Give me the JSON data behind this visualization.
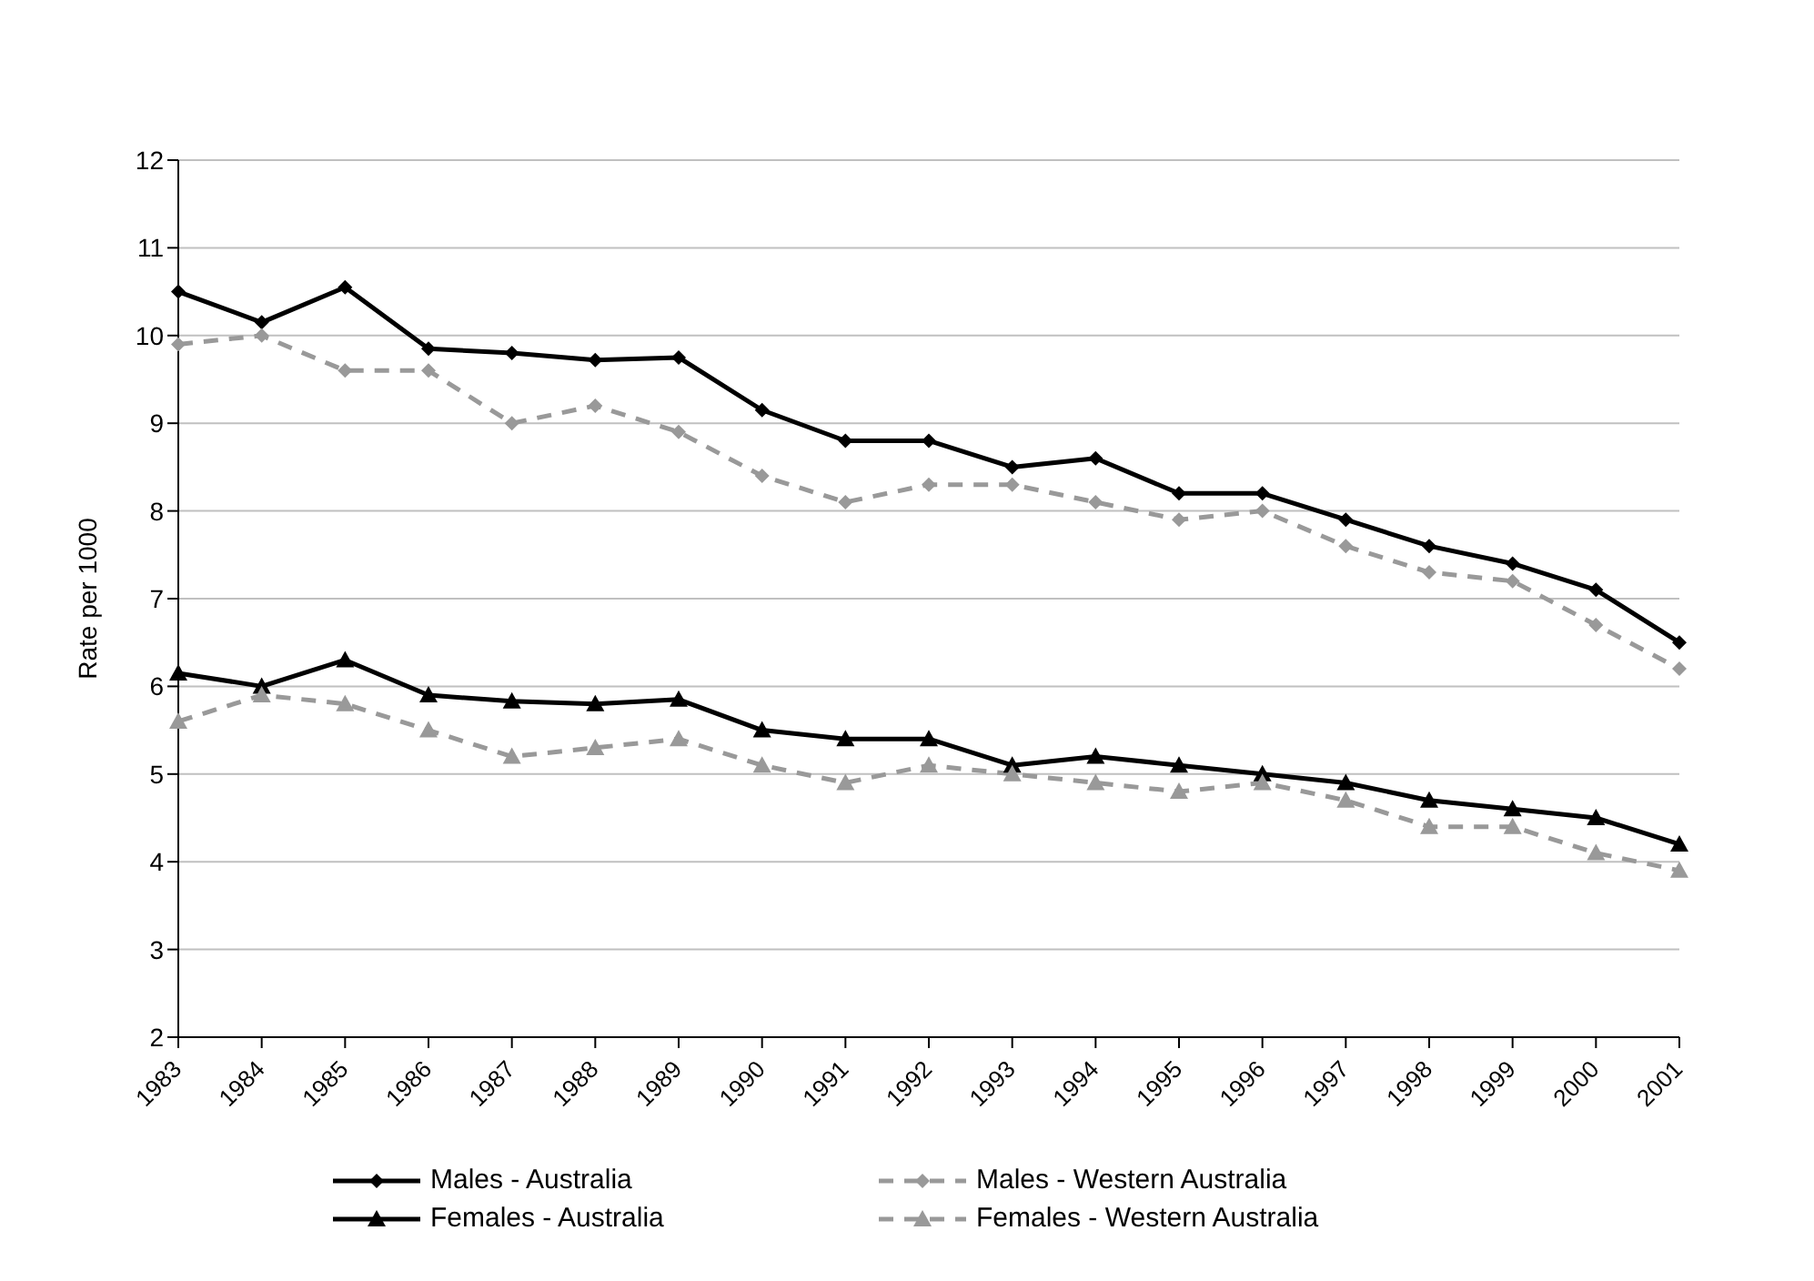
{
  "chart_data": {
    "type": "line",
    "ylabel": "Rate per 1000",
    "categories": [
      "1983",
      "1984",
      "1985",
      "1986",
      "1987",
      "1988",
      "1989",
      "1990",
      "1991",
      "1992",
      "1993",
      "1994",
      "1995",
      "1996",
      "1997",
      "1998",
      "1999",
      "2000",
      "2001"
    ],
    "series": [
      {
        "name": "Males - Australia",
        "color": "#000000",
        "marker": "diamond",
        "line_style": "solid",
        "values": [
          10.5,
          10.15,
          10.55,
          9.85,
          9.8,
          9.72,
          9.75,
          9.15,
          8.8,
          8.8,
          8.5,
          8.6,
          8.2,
          8.2,
          7.9,
          7.6,
          7.4,
          7.1,
          6.5
        ]
      },
      {
        "name": "Males - Western Australia",
        "color": "#999999",
        "marker": "diamond",
        "line_style": "dashed",
        "values": [
          9.9,
          10.0,
          9.6,
          9.6,
          9.0,
          9.2,
          8.9,
          8.4,
          8.1,
          8.3,
          8.3,
          8.1,
          7.9,
          8.0,
          7.6,
          7.3,
          7.2,
          6.7,
          6.2
        ]
      },
      {
        "name": "Females - Australia",
        "color": "#000000",
        "marker": "triangle",
        "line_style": "solid",
        "values": [
          6.15,
          6.0,
          6.3,
          5.9,
          5.83,
          5.8,
          5.85,
          5.5,
          5.4,
          5.4,
          5.1,
          5.2,
          5.1,
          5.0,
          4.9,
          4.7,
          4.6,
          4.5,
          4.2
        ]
      },
      {
        "name": "Females - Western Australia",
        "color": "#999999",
        "marker": "triangle",
        "line_style": "dashed",
        "values": [
          5.6,
          5.9,
          5.8,
          5.5,
          5.2,
          5.3,
          5.4,
          5.1,
          4.9,
          5.1,
          5.0,
          4.9,
          4.8,
          4.9,
          4.7,
          4.4,
          4.4,
          4.1,
          3.9
        ]
      }
    ],
    "ylim": [
      2,
      12
    ],
    "yticks": [
      2,
      3,
      4,
      5,
      6,
      7,
      8,
      9,
      10,
      11,
      12
    ],
    "grid": "y",
    "legend": "bottom"
  }
}
